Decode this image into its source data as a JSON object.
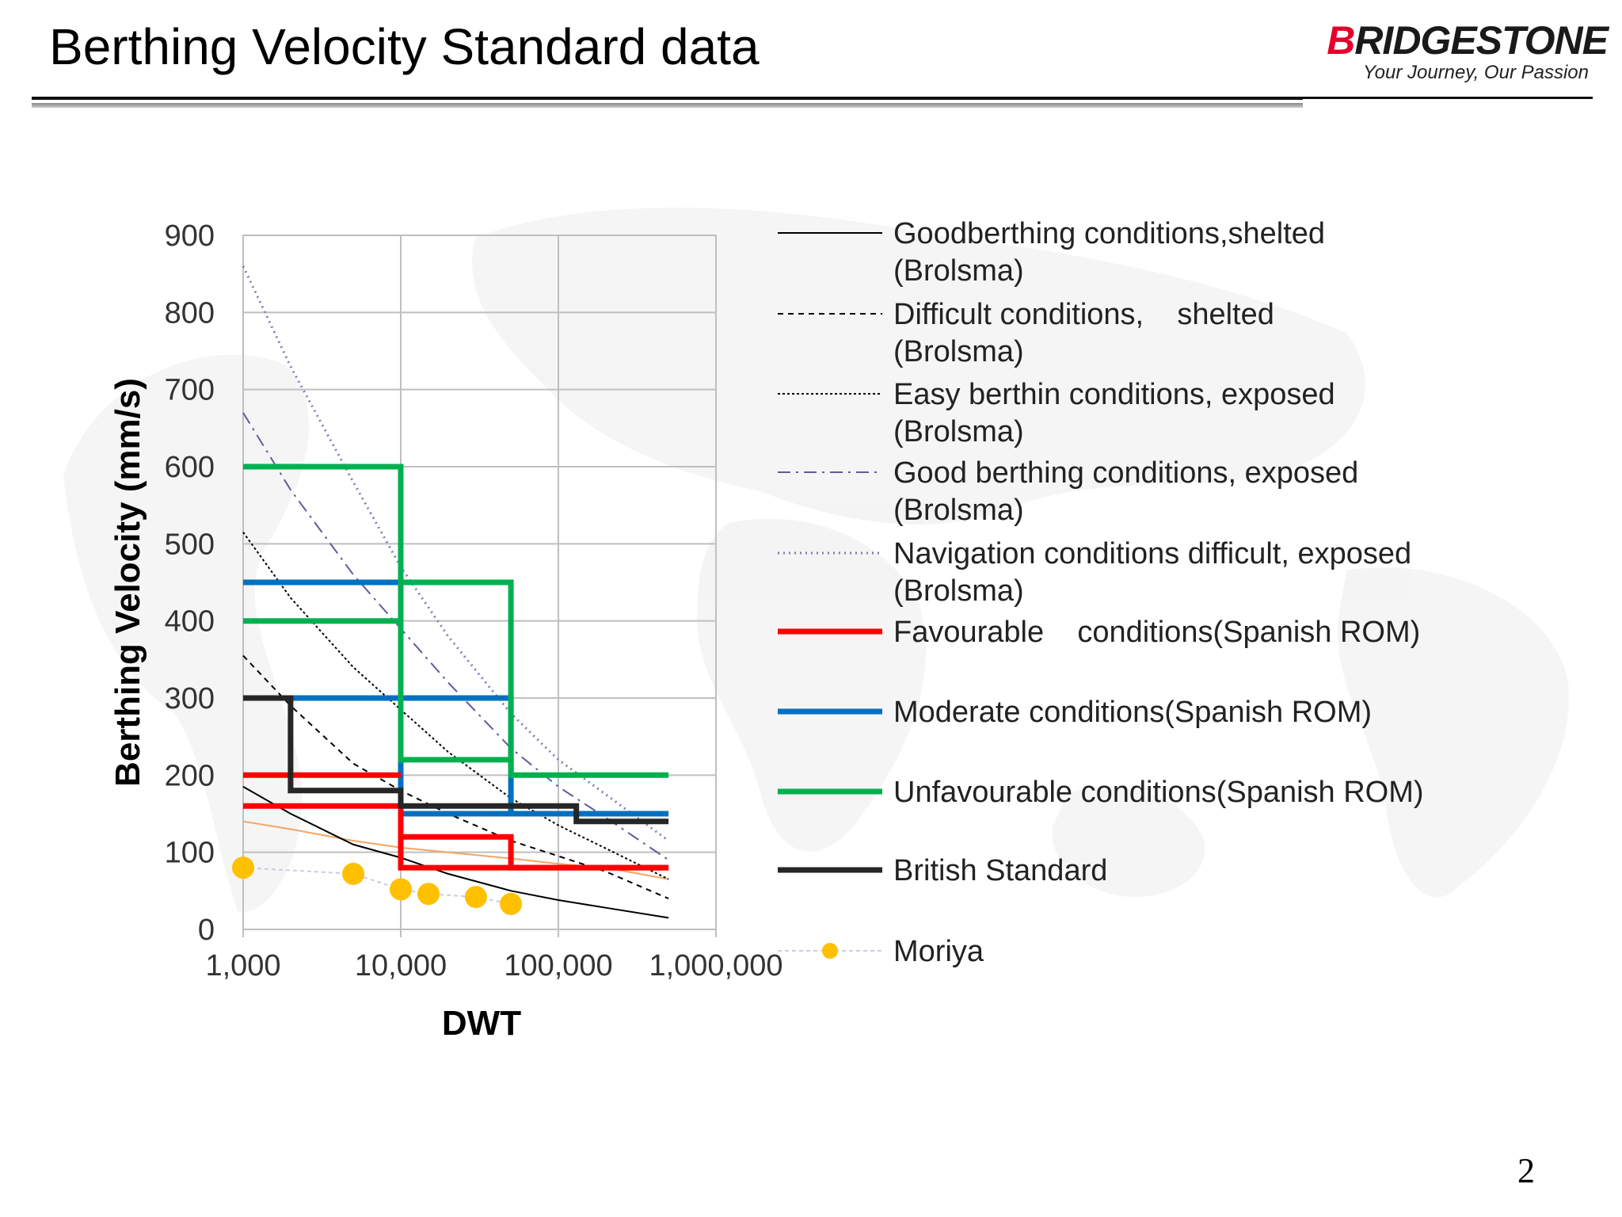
{
  "slide": {
    "title": "Berthing Velocity Standard data",
    "page_number": "2"
  },
  "logo": {
    "brand_b": "B",
    "brand_rest": "RIDGESTONE",
    "tagline": "Your Journey, Our Passion",
    "brand_color": "#e4002b"
  },
  "chart_data": {
    "type": "line",
    "xlabel": "DWT",
    "ylabel": "Berthing Velocity (mm/s)",
    "x_scale": "log",
    "xlim": [
      1000,
      1000000
    ],
    "ylim": [
      0,
      900
    ],
    "x_ticks": [
      1000,
      10000,
      100000,
      1000000
    ],
    "x_tick_labels": [
      "1,000",
      "10,000",
      "100,000",
      "1,000,000"
    ],
    "y_ticks": [
      0,
      100,
      200,
      300,
      400,
      500,
      600,
      700,
      800,
      900
    ],
    "y_tick_labels": [
      "0",
      "100",
      "200",
      "300",
      "400",
      "500",
      "600",
      "700",
      "800",
      "900"
    ],
    "grid": true,
    "legend_position": "right",
    "series": [
      {
        "name": "Goodberthing conditions,shelted (Brolsma)",
        "color": "#000000",
        "style": "solid-thin",
        "x": [
          1000,
          2000,
          5000,
          10000,
          20000,
          50000,
          100000,
          200000,
          500000
        ],
        "y": [
          185,
          150,
          110,
          93,
          72,
          50,
          38,
          28,
          15
        ]
      },
      {
        "name": "Difficult conditions,    shelted  (Brolsma)",
        "color": "#000000",
        "style": "dashed",
        "x": [
          1000,
          2000,
          5000,
          10000,
          20000,
          50000,
          100000,
          200000,
          500000
        ],
        "y": [
          355,
          290,
          215,
          180,
          150,
          115,
          95,
          75,
          40
        ]
      },
      {
        "name": "Easy berthin conditions, exposed (Brolsma)",
        "color": "#000000",
        "style": "dotted-dense",
        "x": [
          1000,
          2000,
          5000,
          10000,
          20000,
          50000,
          100000,
          200000,
          500000
        ],
        "y": [
          515,
          430,
          340,
          285,
          230,
          170,
          135,
          105,
          65
        ]
      },
      {
        "name": "Good berthing conditions, exposed (Brolsma)",
        "color": "#5c5c9c",
        "style": "dashdot",
        "x": [
          1000,
          2000,
          5000,
          10000,
          20000,
          50000,
          100000,
          200000,
          500000
        ],
        "y": [
          670,
          570,
          460,
          390,
          320,
          235,
          185,
          145,
          90
        ]
      },
      {
        "name": "Navigation conditions difficult, exposed (Brolsma)",
        "color": "#7e7eb4",
        "style": "dotted",
        "x": [
          1000,
          2000,
          5000,
          10000,
          20000,
          50000,
          100000,
          200000,
          500000
        ],
        "y": [
          860,
          730,
          580,
          470,
          380,
          280,
          220,
          175,
          115
        ]
      },
      {
        "name": "Favourable    conditions(Spanish  ROM)",
        "color": "#ff0000",
        "style": "thick-step",
        "segments": [
          {
            "x": [
              1000,
              10000
            ],
            "y": [
              200,
              200
            ]
          },
          {
            "x": [
              1000,
              10000,
              10000,
              50000,
              50000,
              500000
            ],
            "y": [
              160,
              160,
              120,
              120,
              80,
              80
            ]
          },
          {
            "x": [
              10000,
              10000,
              500000
            ],
            "y": [
              160,
              80,
              80
            ]
          }
        ]
      },
      {
        "name": "Moderate conditions(Spanish ROM)",
        "color": "#0070c0",
        "style": "thick-step",
        "segments": [
          {
            "x": [
              1000,
              10000,
              10000,
              500000
            ],
            "y": [
              450,
              450,
              150,
              150
            ]
          },
          {
            "x": [
              1000,
              50000,
              50000
            ],
            "y": [
              300,
              300,
              150
            ]
          }
        ]
      },
      {
        "name": "Unfavourable conditions(Spanish ROM)",
        "color": "#00b050",
        "style": "thick-step",
        "segments": [
          {
            "x": [
              1000,
              10000,
              10000,
              50000,
              50000,
              500000
            ],
            "y": [
              600,
              600,
              220,
              220,
              200,
              200
            ]
          },
          {
            "x": [
              1000,
              10000
            ],
            "y": [
              400,
              400
            ]
          },
          {
            "x": [
              10000,
              50000,
              50000
            ],
            "y": [
              450,
              450,
              200
            ]
          }
        ]
      },
      {
        "name": "British Standard",
        "color": "#262626",
        "style": "thick-step",
        "segments": [
          {
            "x": [
              1000,
              2000,
              2000,
              10000,
              10000,
              130000,
              130000,
              500000
            ],
            "y": [
              300,
              300,
              180,
              180,
              160,
              160,
              140,
              140
            ]
          }
        ]
      },
      {
        "name": "Moriya",
        "color": "#ffc000",
        "style": "markers",
        "x": [
          1000,
          5000,
          10000,
          15000,
          30000,
          50000
        ],
        "y": [
          80,
          72,
          52,
          46,
          42,
          33
        ]
      }
    ],
    "extra_lines": [
      {
        "color": "#f4a460",
        "x": [
          1000,
          2000,
          5000,
          10000,
          20000,
          50000,
          100000,
          200000,
          500000
        ],
        "y": [
          140,
          130,
          115,
          106,
          100,
          92,
          85,
          80,
          65
        ]
      }
    ]
  }
}
